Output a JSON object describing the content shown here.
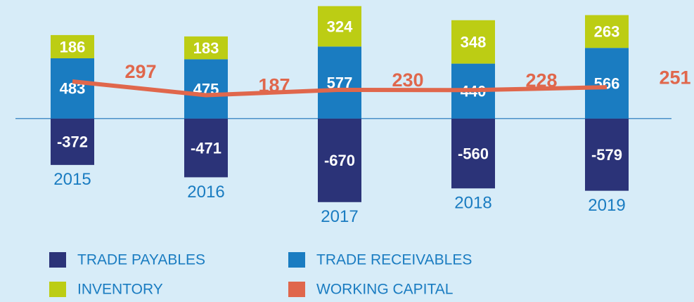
{
  "chart_data": {
    "type": "bar",
    "stacked": true,
    "categories": [
      "2015",
      "2016",
      "2017",
      "2018",
      "2019"
    ],
    "series": [
      {
        "name": "TRADE PAYABLES",
        "color": "#2b3378",
        "values": [
          -372,
          -471,
          -670,
          -560,
          -579
        ]
      },
      {
        "name": "TRADE RECEIVABLES",
        "color": "#1a7cc1",
        "values": [
          483,
          475,
          577,
          440,
          566
        ]
      },
      {
        "name": "INVENTORY",
        "color": "#bccd14",
        "values": [
          186,
          183,
          324,
          348,
          263
        ]
      },
      {
        "name": "WORKING CAPITAL",
        "color": "#e0674c",
        "type": "line",
        "values": [
          297,
          187,
          230,
          228,
          251
        ]
      }
    ],
    "ylim": [
      -750,
      950
    ]
  }
}
